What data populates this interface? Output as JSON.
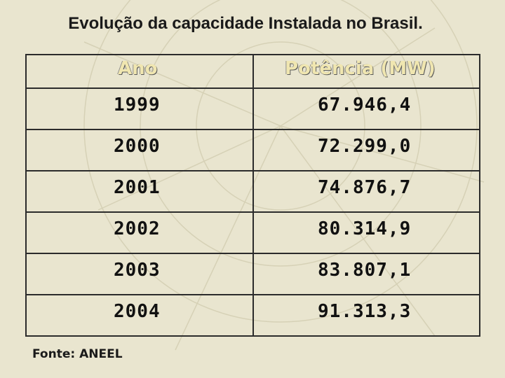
{
  "title": "Evolução da capacidade Instalada no Brasil.",
  "table": {
    "headers": [
      "Ano",
      "Potência (MW)"
    ],
    "rows": [
      [
        "1999",
        "67.946,4"
      ],
      [
        "2000",
        "72.299,0"
      ],
      [
        "2001",
        "74.876,7"
      ],
      [
        "2002",
        "80.314,9"
      ],
      [
        "2003",
        "83.807,1"
      ],
      [
        "2004",
        "91.313,3"
      ]
    ]
  },
  "source": "Fonte: ANEEL",
  "colors": {
    "background": "#e9e5cf",
    "header_text": "#f0e6b0",
    "border": "#2b2b2b"
  }
}
